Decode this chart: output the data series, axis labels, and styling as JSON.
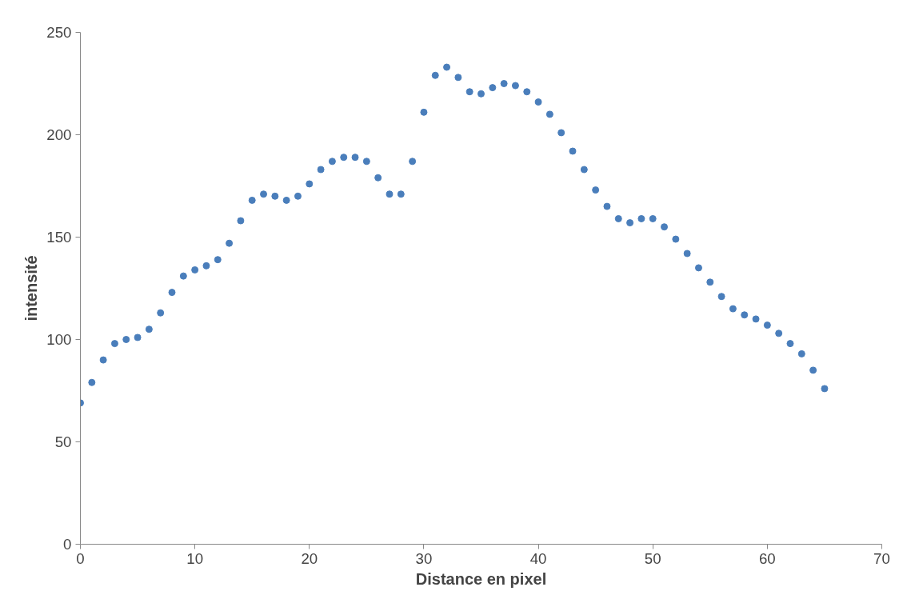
{
  "chart_data": {
    "type": "scatter",
    "xlabel": "Distance en pixel",
    "ylabel": "intensité",
    "x": [
      0,
      1,
      2,
      3,
      4,
      5,
      6,
      7,
      8,
      9,
      10,
      11,
      12,
      13,
      14,
      15,
      16,
      17,
      18,
      19,
      20,
      21,
      22,
      23,
      24,
      25,
      26,
      27,
      28,
      29,
      30,
      31,
      32,
      33,
      34,
      35,
      36,
      37,
      38,
      39,
      40,
      41,
      42,
      43,
      44,
      45,
      46,
      47,
      48,
      49,
      50,
      51,
      52,
      53,
      54,
      55,
      56,
      57,
      58,
      59,
      60,
      61,
      62,
      63,
      64,
      65
    ],
    "series": [
      {
        "color": "#4a7ebb",
        "values": [
          69,
          79,
          90,
          98,
          100,
          101,
          105,
          113,
          123,
          131,
          134,
          136,
          139,
          147,
          158,
          168,
          171,
          170,
          168,
          170,
          176,
          183,
          187,
          189,
          189,
          187,
          179,
          171,
          171,
          187,
          211,
          229,
          233,
          228,
          221,
          220,
          223,
          225,
          224,
          221,
          216,
          210,
          201,
          192,
          183,
          173,
          165,
          159,
          157,
          159,
          159,
          155,
          149,
          142,
          135,
          128,
          121,
          115,
          112,
          110,
          107,
          103,
          98,
          93,
          85,
          76
        ]
      }
    ],
    "xlim": [
      0,
      70
    ],
    "xticks": [
      0,
      10,
      20,
      30,
      40,
      50,
      60,
      70
    ],
    "ylim": [
      0,
      250
    ],
    "yticks": [
      0,
      50,
      100,
      150,
      200,
      250
    ],
    "grid": false,
    "marker": "circle"
  }
}
